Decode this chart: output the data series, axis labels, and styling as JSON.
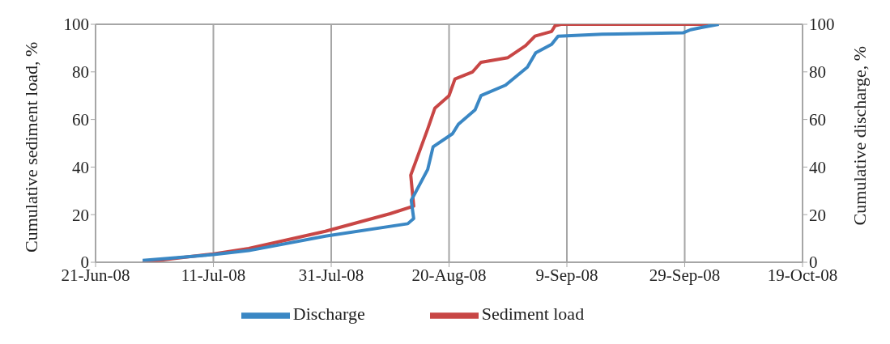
{
  "chart_data": {
    "type": "line",
    "ylabel": "Cumulative sediment load, %",
    "y2label": "Cumulative discharge, %",
    "xlim": [
      "2008-06-21",
      "2008-10-19"
    ],
    "xticks": [
      {
        "value": "2008-06-21",
        "label": "21-Jun-08"
      },
      {
        "value": "2008-07-11",
        "label": "11-Jul-08"
      },
      {
        "value": "2008-07-31",
        "label": "31-Jul-08"
      },
      {
        "value": "2008-08-20",
        "label": "20-Aug-08"
      },
      {
        "value": "2008-09-09",
        "label": "9-Sep-08"
      },
      {
        "value": "2008-09-29",
        "label": "29-Sep-08"
      },
      {
        "value": "2008-10-19",
        "label": "19-Oct-08"
      }
    ],
    "ylim": [
      0,
      100
    ],
    "yticks": [
      0,
      20,
      40,
      60,
      80,
      100
    ],
    "y2lim": [
      0,
      100
    ],
    "y2ticks": [
      0,
      20,
      40,
      60,
      80,
      100
    ],
    "grid": true,
    "legend": "bottom",
    "marker": "none",
    "line_style": "solid",
    "series": [
      {
        "name": "Sediment load",
        "color": "#c84645",
        "x": [
          "2008-06-29",
          "2008-07-11",
          "2008-07-17",
          "2008-07-30",
          "2008-08-10",
          "2008-08-14",
          "2008-08-13T12:00",
          "2008-08-16T09:00",
          "2008-08-17T14:00",
          "2008-08-20",
          "2008-08-21",
          "2008-08-24",
          "2008-08-25T10:00",
          "2008-08-30",
          "2008-09-02",
          "2008-09-03T14:00",
          "2008-09-06T10:00",
          "2008-09-07",
          "2008-09-08",
          "2008-10-03"
        ],
        "values": [
          0,
          3.5,
          5.8,
          13,
          20.4,
          23.6,
          36.6,
          56,
          64.7,
          70,
          77,
          80,
          84,
          86,
          91,
          95,
          97,
          99.4,
          100,
          100
        ]
      },
      {
        "name": "Discharge",
        "color": "#3a87c4",
        "axis": "y2",
        "x": [
          "2008-06-29",
          "2008-07-11",
          "2008-07-17",
          "2008-07-30",
          "2008-08-13",
          "2008-08-14",
          "2008-08-13T14:00",
          "2008-08-16T09:00",
          "2008-08-17T07:00",
          "2008-08-20T14:00",
          "2008-08-21T14:00",
          "2008-08-24T10:00",
          "2008-08-25T10:00",
          "2008-08-29T14:00",
          "2008-09-02T07:00",
          "2008-09-03T17:00",
          "2008-09-06T10:00",
          "2008-09-07T12:00",
          "2008-09-15",
          "2008-09-28T17:00",
          "2008-09-30",
          "2008-10-02",
          "2008-10-04T19:00"
        ],
        "values": [
          0.8,
          3.2,
          4.9,
          11,
          16.2,
          18.4,
          26,
          39,
          48.5,
          54,
          58,
          64,
          70,
          74.4,
          82,
          88,
          91.6,
          95,
          95.8,
          96.4,
          97.7,
          98.7,
          100
        ]
      }
    ]
  }
}
